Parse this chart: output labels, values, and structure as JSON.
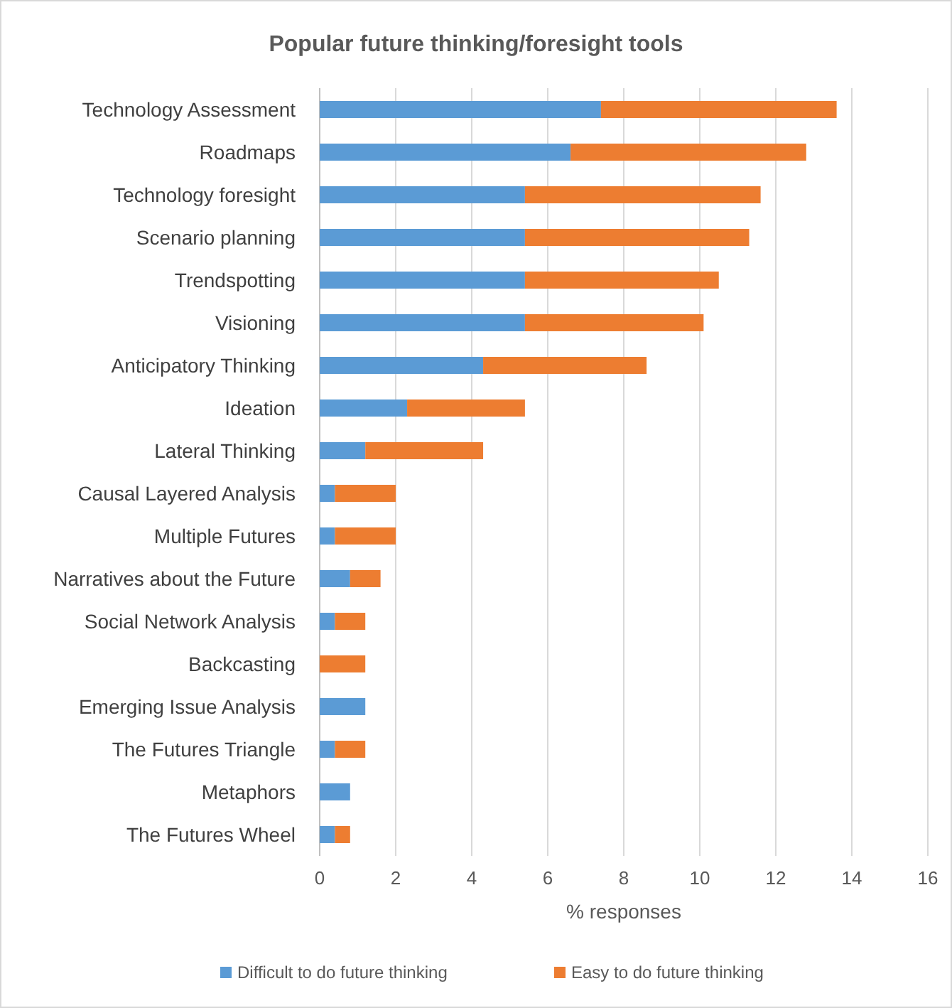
{
  "chart_data": {
    "type": "bar",
    "orientation": "horizontal",
    "stacked": true,
    "title": "Popular future thinking/foresight tools",
    "xlabel": "% responses",
    "categories": [
      "Technology Assessment",
      "Roadmaps",
      "Technology foresight",
      "Scenario planning",
      "Trendspotting",
      "Visioning",
      "Anticipatory Thinking",
      "Ideation",
      "Lateral Thinking",
      "Causal Layered Analysis",
      "Multiple Futures",
      "Narratives about the Future",
      "Social Network Analysis",
      "Backcasting",
      "Emerging Issue Analysis",
      "The Futures Triangle",
      "Metaphors",
      "The Futures Wheel"
    ],
    "series": [
      {
        "name": "Difficult to do future thinking",
        "color": "#5b9bd5",
        "values": [
          7.4,
          6.6,
          5.4,
          5.4,
          5.4,
          5.4,
          4.3,
          2.3,
          1.2,
          0.4,
          0.4,
          0.8,
          0.4,
          0,
          1.2,
          0.4,
          0.8,
          0.4
        ]
      },
      {
        "name": "Easy to do future thinking",
        "color": "#ed7d31",
        "values": [
          6.2,
          6.2,
          6.2,
          5.9,
          5.1,
          4.7,
          4.3,
          3.1,
          3.1,
          1.6,
          1.6,
          0.8,
          0.8,
          1.2,
          0,
          0.8,
          0,
          0.4
        ]
      }
    ],
    "xlim": [
      0,
      16
    ],
    "xticks": [
      0,
      2,
      4,
      6,
      8,
      10,
      12,
      14,
      16
    ],
    "grid": "x",
    "legend": "bottom"
  }
}
